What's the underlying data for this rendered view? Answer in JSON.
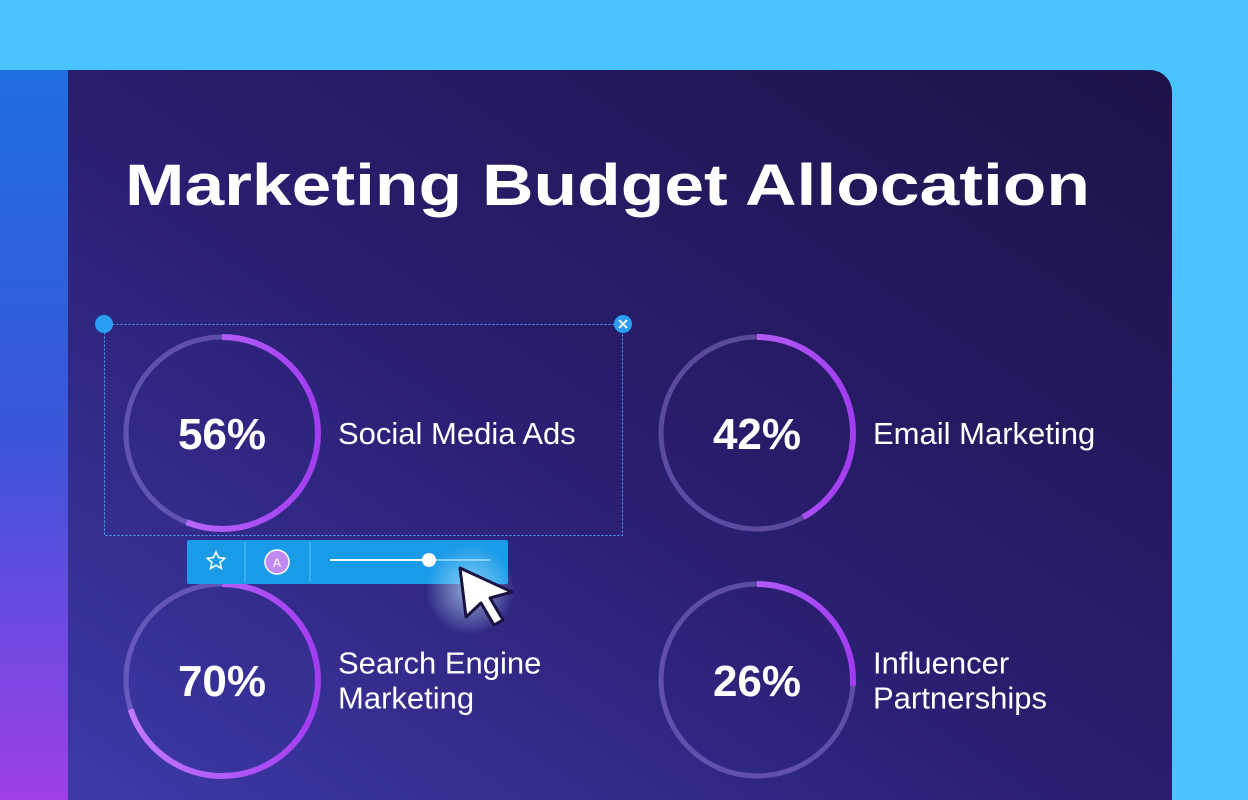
{
  "title": "Marketing Budget Allocation",
  "items": [
    {
      "value": 56,
      "value_label": "56%",
      "lines": [
        "Social Media Ads"
      ]
    },
    {
      "value": 42,
      "value_label": "42%",
      "lines": [
        "Email Marketing"
      ]
    },
    {
      "value": 70,
      "value_label": "70%",
      "lines": [
        "Search Engine",
        "Marketing"
      ]
    },
    {
      "value": 26,
      "value_label": "26%",
      "lines": [
        "Influencer",
        "Partnerships"
      ]
    }
  ],
  "toolbar": {
    "avatar": "A"
  }
}
